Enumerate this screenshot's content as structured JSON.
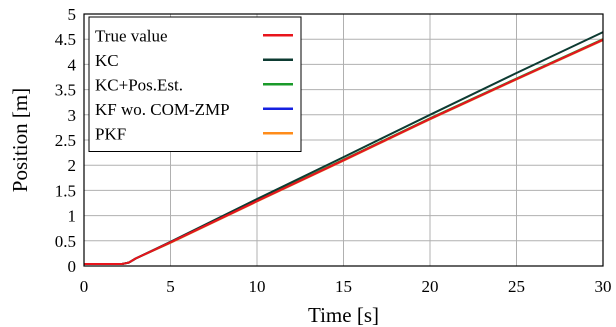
{
  "chart_data": {
    "type": "line",
    "title": "",
    "xlabel": "Time [s]",
    "ylabel": "Position [m]",
    "xlim": [
      0,
      30
    ],
    "ylim": [
      0,
      5
    ],
    "xticks": [
      0,
      5,
      10,
      15,
      20,
      25,
      30
    ],
    "yticks": [
      0,
      0.5,
      1,
      1.5,
      2,
      2.5,
      3,
      3.5,
      4,
      4.5,
      5
    ],
    "grid": true,
    "legend_position": "top-left",
    "series": [
      {
        "name": "True value",
        "color": "#e8141c",
        "x": [
          0,
          2.2,
          2.6,
          3,
          5,
          10,
          15,
          20,
          25,
          30
        ],
        "y": [
          0.04,
          0.04,
          0.07,
          0.15,
          0.47,
          1.29,
          2.1,
          2.92,
          3.71,
          4.49
        ]
      },
      {
        "name": "KC",
        "color": "#0d3b32",
        "x": [
          0,
          2.2,
          2.6,
          3,
          5,
          10,
          15,
          20,
          25,
          30
        ],
        "y": [
          0.04,
          0.04,
          0.07,
          0.15,
          0.48,
          1.33,
          2.16,
          3.0,
          3.83,
          4.64
        ]
      },
      {
        "name": "KC+Pos.Est.",
        "color": "#1a9a2a",
        "x": [
          0,
          2.2,
          2.6,
          3,
          5,
          10,
          15,
          20,
          25,
          30
        ],
        "y": [
          0.04,
          0.04,
          0.07,
          0.15,
          0.47,
          1.3,
          2.11,
          2.93,
          3.72,
          4.5
        ]
      },
      {
        "name": "KF wo. COM-ZMP",
        "color": "#1520e0",
        "x": [
          0,
          2.2,
          2.6,
          3,
          5,
          10,
          15,
          20,
          25,
          30
        ],
        "y": [
          0.04,
          0.04,
          0.07,
          0.15,
          0.47,
          1.29,
          2.1,
          2.92,
          3.71,
          4.49
        ]
      },
      {
        "name": "PKF",
        "color": "#ff8c1a",
        "x": [
          0,
          2.2,
          2.6,
          3,
          5,
          10,
          15,
          20,
          25,
          30
        ],
        "y": [
          0.04,
          0.04,
          0.07,
          0.15,
          0.46,
          1.28,
          2.09,
          2.91,
          3.7,
          4.48
        ]
      }
    ]
  }
}
